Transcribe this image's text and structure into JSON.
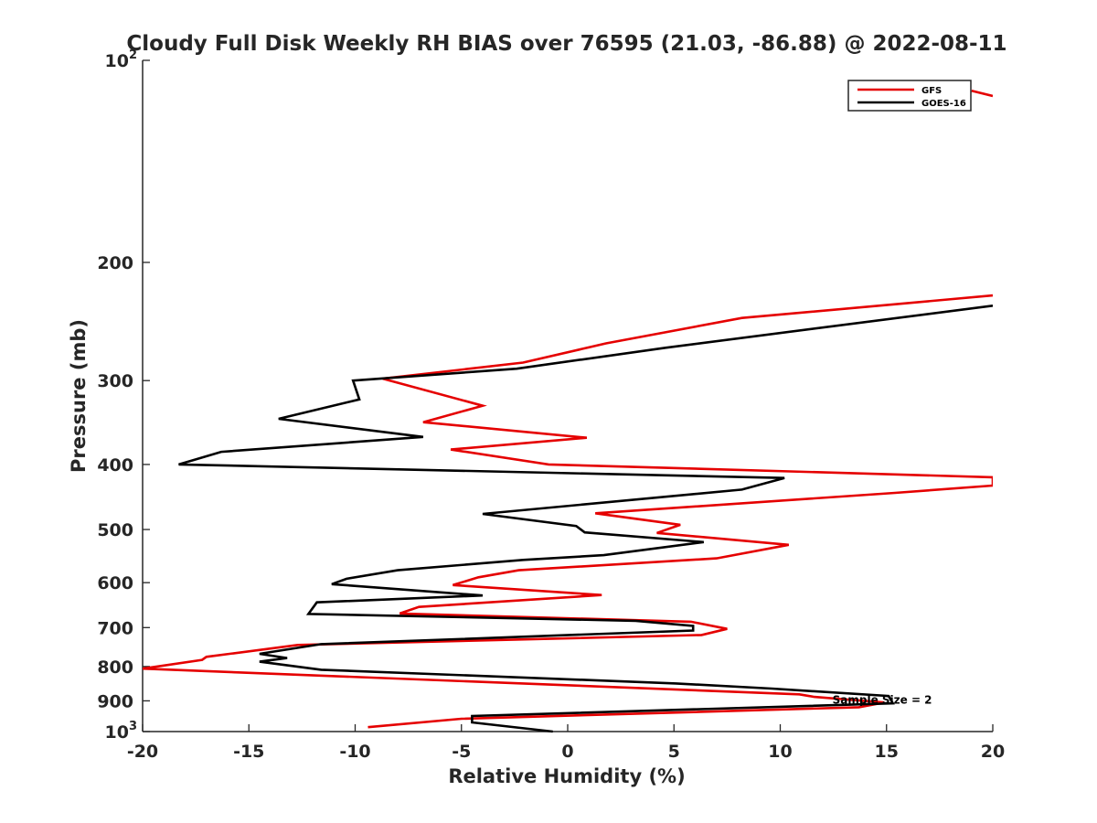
{
  "chart_data": {
    "type": "line",
    "title": "Cloudy Full Disk Weekly RH BIAS over 76595 (21.03, -86.88) @ 2022-08-11",
    "xlabel": "Relative Humidity (%)",
    "ylabel": "Pressure (mb)",
    "xlim": [
      -20,
      20
    ],
    "ylim": [
      100,
      1000
    ],
    "y_scale": "log",
    "y_reversed": true,
    "grid": false,
    "legend_position": "top-right",
    "x_ticks": [
      "-20",
      "-15",
      "-10",
      "-5",
      "0",
      "5",
      "10",
      "15",
      "20"
    ],
    "x_tick_values": [
      -20,
      -15,
      -10,
      -5,
      0,
      5,
      10,
      15,
      20
    ],
    "y_ticks": [
      {
        "value": 100,
        "base": "10",
        "exp": "2"
      },
      {
        "value": 200,
        "label": "200"
      },
      {
        "value": 300,
        "label": "300"
      },
      {
        "value": 400,
        "label": "400"
      },
      {
        "value": 500,
        "label": "500"
      },
      {
        "value": 600,
        "label": "600"
      },
      {
        "value": 700,
        "label": "700"
      },
      {
        "value": 800,
        "label": "800"
      },
      {
        "value": 900,
        "label": "900"
      },
      {
        "value": 1000,
        "base": "10",
        "exp": "3"
      }
    ],
    "series": [
      {
        "name": "GFS",
        "color": "#e50000",
        "points": [
          [
            19.0,
            111
          ],
          [
            20.0,
            113
          ],
          [
            null,
            null
          ],
          [
            20.0,
            224
          ],
          [
            8.2,
            242
          ],
          [
            1.8,
            264
          ],
          [
            -2.1,
            282
          ],
          [
            -8.7,
            298
          ],
          [
            -4.0,
            327
          ],
          [
            -6.8,
            346
          ],
          [
            0.9,
            365
          ],
          [
            -5.5,
            380
          ],
          [
            -0.9,
            400
          ],
          [
            20.0,
            418
          ],
          [
            20.0,
            430
          ],
          [
            15.4,
            441
          ],
          [
            1.3,
            473
          ],
          [
            5.3,
            492
          ],
          [
            4.2,
            506
          ],
          [
            10.4,
            527
          ],
          [
            7.0,
            552
          ],
          [
            -2.3,
            575
          ],
          [
            -4.2,
            589
          ],
          [
            -5.4,
            605
          ],
          [
            1.6,
            626
          ],
          [
            -7.0,
            652
          ],
          [
            -7.9,
            667
          ],
          [
            5.8,
            686
          ],
          [
            7.5,
            703
          ],
          [
            6.3,
            718
          ],
          [
            -12.7,
            743
          ],
          [
            -17.0,
            774
          ],
          [
            -17.2,
            782
          ],
          [
            -20.0,
            806
          ],
          [
            10.9,
            880
          ],
          [
            11.6,
            888
          ],
          [
            14.9,
            905
          ],
          [
            13.7,
            920
          ],
          [
            -5.0,
            957
          ],
          [
            -9.4,
            985
          ]
        ]
      },
      {
        "name": "GOES-16",
        "color": "#000000",
        "points": [
          [
            20.0,
            232
          ],
          [
            4.6,
            268
          ],
          [
            -2.4,
            288
          ],
          [
            -10.1,
            300
          ],
          [
            -9.8,
            320
          ],
          [
            -13.6,
            342
          ],
          [
            -6.8,
            364
          ],
          [
            -16.3,
            383
          ],
          [
            -18.3,
            400
          ],
          [
            10.2,
            419
          ],
          [
            8.2,
            436
          ],
          [
            -4.0,
            474
          ],
          [
            0.4,
            494
          ],
          [
            0.8,
            505
          ],
          [
            6.4,
            522
          ],
          [
            1.7,
            546
          ],
          [
            -2.1,
            555
          ],
          [
            -8.0,
            575
          ],
          [
            -10.4,
            592
          ],
          [
            -11.1,
            603
          ],
          [
            -4.0,
            627
          ],
          [
            -11.8,
            642
          ],
          [
            -12.2,
            668
          ],
          [
            3.2,
            684
          ],
          [
            5.9,
            696
          ],
          [
            5.9,
            707
          ],
          [
            -11.6,
            741
          ],
          [
            -14.5,
            766
          ],
          [
            -13.2,
            777
          ],
          [
            -14.5,
            787
          ],
          [
            -11.6,
            809
          ],
          [
            5.1,
            848
          ],
          [
            9.6,
            863
          ],
          [
            15.1,
            885
          ],
          [
            15.3,
            908
          ],
          [
            -4.5,
            948
          ],
          [
            -4.5,
            969
          ],
          [
            -0.7,
            1000
          ]
        ]
      }
    ],
    "annotations": [
      {
        "text": "Sample Size = 2",
        "x": 12.5,
        "y": 897
      }
    ]
  }
}
